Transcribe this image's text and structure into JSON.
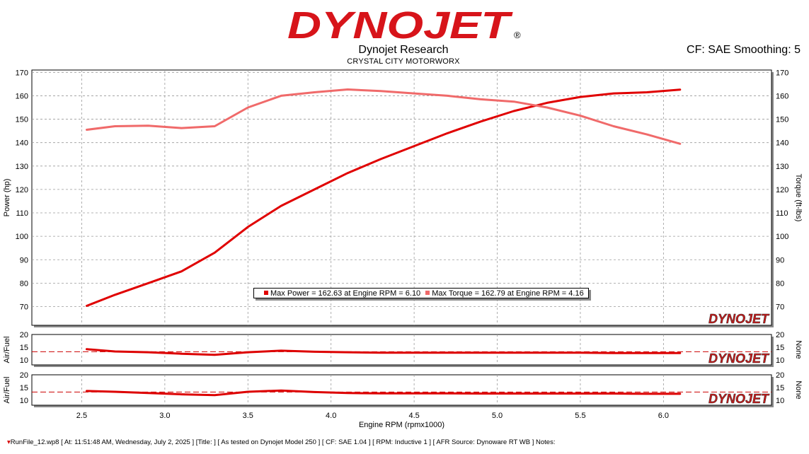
{
  "header": {
    "brand": "DYNOJET",
    "brand_mark": "®",
    "title": "Dynojet Research",
    "subtitle": "CRYSTAL CITY MOTORWORX",
    "correction": "CF: SAE Smoothing: 5"
  },
  "colors": {
    "power": "#e00000",
    "torque": "#f06a6a",
    "afr": "#dd0000",
    "grid": "#9a9a9a",
    "reference_line": "#cc0000"
  },
  "watermark_text": "DYNOJET",
  "legend": {
    "power": "Max Power = 162.63 at Engine RPM = 6.10",
    "torque": "Max Torque = 162.79 at Engine RPM = 4.16"
  },
  "footer": "RunFile_12.wp8 [ At: 11:51:48 AM, Wednesday, July 2, 2025 ] [Title: ]  [ As tested on Dynojet Model 250 ] [ CF: SAE 1.04 ] [ RPM: Inductive 1 ] [ AFR Source: Dynoware RT WB ] Notes:",
  "chart_data": [
    {
      "type": "line",
      "xlabel": "Engine RPM (rpmx1000)",
      "ylabel": "Power (hp)",
      "y2label": "Torque (ft-lbs)",
      "xlim": [
        2.2,
        6.65
      ],
      "ylim": [
        62,
        171
      ],
      "xticks": [
        "2.5",
        "3.0",
        "3.5",
        "4.0",
        "4.5",
        "5.0",
        "5.5",
        "6.0"
      ],
      "yticks": [
        "70",
        "80",
        "90",
        "100",
        "110",
        "120",
        "130",
        "140",
        "150",
        "160",
        "170"
      ],
      "grid": true,
      "legend_position": "bottom-center",
      "series": [
        {
          "name": "Power",
          "x": [
            2.53,
            2.7,
            2.9,
            3.1,
            3.3,
            3.5,
            3.7,
            3.9,
            4.1,
            4.3,
            4.5,
            4.7,
            4.9,
            5.1,
            5.3,
            5.5,
            5.7,
            5.9,
            6.1
          ],
          "values": [
            70.3,
            75,
            80,
            85,
            93,
            104,
            113,
            120,
            127,
            133,
            138.5,
            144,
            149,
            153.5,
            157,
            159.5,
            161,
            161.5,
            162.6
          ]
        },
        {
          "name": "Torque",
          "x": [
            2.53,
            2.7,
            2.9,
            3.1,
            3.3,
            3.5,
            3.7,
            3.9,
            4.1,
            4.3,
            4.5,
            4.7,
            4.9,
            5.1,
            5.3,
            5.5,
            5.7,
            5.9,
            6.1
          ],
          "values": [
            145.5,
            147,
            147.2,
            146.2,
            147,
            155,
            160,
            161.5,
            162.7,
            162,
            161,
            160,
            158.5,
            157.5,
            155,
            151.5,
            147,
            143.5,
            139.5
          ]
        }
      ]
    },
    {
      "type": "line",
      "ylabel": "Air/Fuel",
      "y2label": "None",
      "xlim": [
        2.2,
        6.65
      ],
      "ylim": [
        8,
        20
      ],
      "yticks": [
        "10",
        "15",
        "20"
      ],
      "reference_line": 13.2,
      "series": [
        {
          "x": [
            2.53,
            2.7,
            2.9,
            3.1,
            3.3,
            3.5,
            3.7,
            3.9,
            4.1,
            4.3,
            4.5,
            4.7,
            4.9,
            5.1,
            5.3,
            5.5,
            5.7,
            5.9,
            6.1
          ],
          "values": [
            14.2,
            13.3,
            13,
            12.4,
            12,
            13,
            13.6,
            13.2,
            13,
            12.8,
            12.8,
            12.8,
            12.8,
            12.8,
            12.8,
            12.8,
            12.7,
            12.7,
            12.7
          ]
        }
      ]
    },
    {
      "type": "line",
      "ylabel": "Air/Fuel",
      "y2label": "None",
      "xlim": [
        2.2,
        6.65
      ],
      "ylim": [
        8,
        20
      ],
      "yticks": [
        "10",
        "15",
        "20"
      ],
      "reference_line": 13.2,
      "series": [
        {
          "x": [
            2.53,
            2.7,
            2.9,
            3.1,
            3.3,
            3.5,
            3.7,
            3.9,
            4.1,
            4.3,
            4.5,
            4.7,
            4.9,
            5.1,
            5.3,
            5.5,
            5.7,
            5.9,
            6.1
          ],
          "values": [
            13.6,
            13.3,
            12.8,
            12.3,
            12,
            13.3,
            13.8,
            13.2,
            12.8,
            12.7,
            12.7,
            12.7,
            12.6,
            12.6,
            12.6,
            12.6,
            12.6,
            12.5,
            12.5
          ]
        }
      ]
    }
  ]
}
